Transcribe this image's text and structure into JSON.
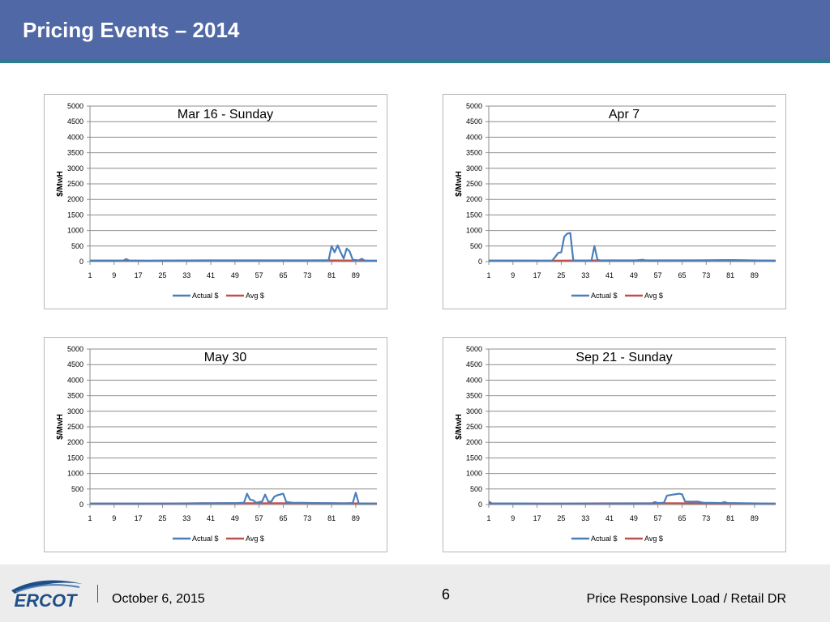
{
  "slide": {
    "title": "Pricing Events – 2014"
  },
  "footer": {
    "logo_text": "ERCOT",
    "date": "October 6, 2015",
    "page_number": "6",
    "right_text": "Price Responsive Load / Retail DR"
  },
  "colors": {
    "title_bar": "#5069a6",
    "actual_line": "#4a7ebb",
    "avg_line": "#c0504d"
  },
  "chart_data": [
    {
      "type": "line",
      "title": "Mar 16 - Sunday",
      "ylabel": "$/MwH",
      "ylim": [
        0,
        5000
      ],
      "yticks": [
        0,
        500,
        1000,
        1500,
        2000,
        2500,
        3000,
        3500,
        4000,
        4500,
        5000
      ],
      "xticks": [
        1,
        9,
        17,
        25,
        33,
        41,
        49,
        57,
        65,
        73,
        81,
        89
      ],
      "xlim": [
        1,
        96
      ],
      "legend": "bottom",
      "series": [
        {
          "name": "Actual $",
          "color": "#4a7ebb",
          "points": [
            [
              1,
              30
            ],
            [
              12,
              30
            ],
            [
              13,
              80
            ],
            [
              14,
              35
            ],
            [
              20,
              25
            ],
            [
              25,
              30
            ],
            [
              40,
              35
            ],
            [
              50,
              30
            ],
            [
              60,
              35
            ],
            [
              70,
              35
            ],
            [
              79,
              40
            ],
            [
              80,
              40
            ],
            [
              81,
              500
            ],
            [
              82,
              300
            ],
            [
              83,
              520
            ],
            [
              84,
              300
            ],
            [
              85,
              100
            ],
            [
              86,
              420
            ],
            [
              87,
              320
            ],
            [
              88,
              60
            ],
            [
              90,
              40
            ],
            [
              91,
              90
            ],
            [
              92,
              30
            ],
            [
              96,
              25
            ]
          ]
        },
        {
          "name": "Avg $",
          "color": "#c0504d",
          "points": [
            [
              1,
              35
            ],
            [
              20,
              30
            ],
            [
              40,
              40
            ],
            [
              60,
              38
            ],
            [
              80,
              40
            ],
            [
              96,
              30
            ]
          ]
        }
      ]
    },
    {
      "type": "line",
      "title": "Apr 7",
      "ylabel": "$/MwH",
      "ylim": [
        0,
        5000
      ],
      "yticks": [
        0,
        500,
        1000,
        1500,
        2000,
        2500,
        3000,
        3500,
        4000,
        4500,
        5000
      ],
      "xticks": [
        1,
        9,
        17,
        25,
        33,
        41,
        49,
        57,
        65,
        73,
        81,
        89
      ],
      "xlim": [
        1,
        96
      ],
      "legend": "bottom",
      "series": [
        {
          "name": "Actual $",
          "color": "#4a7ebb",
          "points": [
            [
              1,
              30
            ],
            [
              20,
              30
            ],
            [
              22,
              35
            ],
            [
              23,
              150
            ],
            [
              24,
              280
            ],
            [
              25,
              300
            ],
            [
              26,
              800
            ],
            [
              27,
              900
            ],
            [
              28,
              920
            ],
            [
              29,
              40
            ],
            [
              35,
              35
            ],
            [
              36,
              500
            ],
            [
              37,
              60
            ],
            [
              38,
              35
            ],
            [
              50,
              40
            ],
            [
              52,
              60
            ],
            [
              53,
              35
            ],
            [
              70,
              35
            ],
            [
              81,
              50
            ],
            [
              96,
              30
            ]
          ]
        },
        {
          "name": "Avg $",
          "color": "#c0504d",
          "points": [
            [
              1,
              35
            ],
            [
              20,
              32
            ],
            [
              40,
              40
            ],
            [
              60,
              38
            ],
            [
              80,
              42
            ],
            [
              96,
              32
            ]
          ]
        }
      ]
    },
    {
      "type": "line",
      "title": "May 30",
      "ylabel": "$/MwH",
      "ylim": [
        0,
        5000
      ],
      "yticks": [
        0,
        500,
        1000,
        1500,
        2000,
        2500,
        3000,
        3500,
        4000,
        4500,
        5000
      ],
      "xticks": [
        1,
        9,
        17,
        25,
        33,
        41,
        49,
        57,
        65,
        73,
        81,
        89
      ],
      "xlim": [
        1,
        96
      ],
      "legend": "bottom",
      "series": [
        {
          "name": "Actual $",
          "color": "#4a7ebb",
          "points": [
            [
              1,
              30
            ],
            [
              30,
              35
            ],
            [
              50,
              50
            ],
            [
              52,
              60
            ],
            [
              53,
              350
            ],
            [
              54,
              160
            ],
            [
              55,
              140
            ],
            [
              56,
              60
            ],
            [
              58,
              100
            ],
            [
              59,
              320
            ],
            [
              60,
              100
            ],
            [
              61,
              90
            ],
            [
              62,
              250
            ],
            [
              63,
              300
            ],
            [
              65,
              350
            ],
            [
              66,
              80
            ],
            [
              68,
              60
            ],
            [
              75,
              50
            ],
            [
              85,
              40
            ],
            [
              88,
              50
            ],
            [
              89,
              380
            ],
            [
              90,
              40
            ],
            [
              96,
              30
            ]
          ]
        },
        {
          "name": "Avg $",
          "color": "#c0504d",
          "points": [
            [
              1,
              35
            ],
            [
              20,
              30
            ],
            [
              40,
              45
            ],
            [
              60,
              45
            ],
            [
              80,
              45
            ],
            [
              96,
              35
            ]
          ]
        }
      ]
    },
    {
      "type": "line",
      "title": "Sep 21 - Sunday",
      "ylabel": "$/MwH",
      "ylim": [
        0,
        5000
      ],
      "yticks": [
        0,
        500,
        1000,
        1500,
        2000,
        2500,
        3000,
        3500,
        4000,
        4500,
        5000
      ],
      "xticks": [
        1,
        9,
        17,
        25,
        33,
        41,
        49,
        57,
        65,
        73,
        81,
        89
      ],
      "xlim": [
        1,
        96
      ],
      "legend": "bottom",
      "series": [
        {
          "name": "Actual $",
          "color": "#4a7ebb",
          "points": [
            [
              1,
              100
            ],
            [
              2,
              40
            ],
            [
              20,
              30
            ],
            [
              40,
              35
            ],
            [
              55,
              40
            ],
            [
              56,
              80
            ],
            [
              57,
              50
            ],
            [
              59,
              60
            ],
            [
              60,
              290
            ],
            [
              62,
              320
            ],
            [
              64,
              350
            ],
            [
              65,
              330
            ],
            [
              66,
              100
            ],
            [
              68,
              90
            ],
            [
              70,
              100
            ],
            [
              72,
              60
            ],
            [
              78,
              50
            ],
            [
              79,
              80
            ],
            [
              80,
              50
            ],
            [
              96,
              30
            ]
          ]
        },
        {
          "name": "Avg $",
          "color": "#c0504d",
          "points": [
            [
              1,
              35
            ],
            [
              20,
              30
            ],
            [
              40,
              40
            ],
            [
              60,
              45
            ],
            [
              80,
              40
            ],
            [
              96,
              30
            ]
          ]
        }
      ]
    }
  ]
}
